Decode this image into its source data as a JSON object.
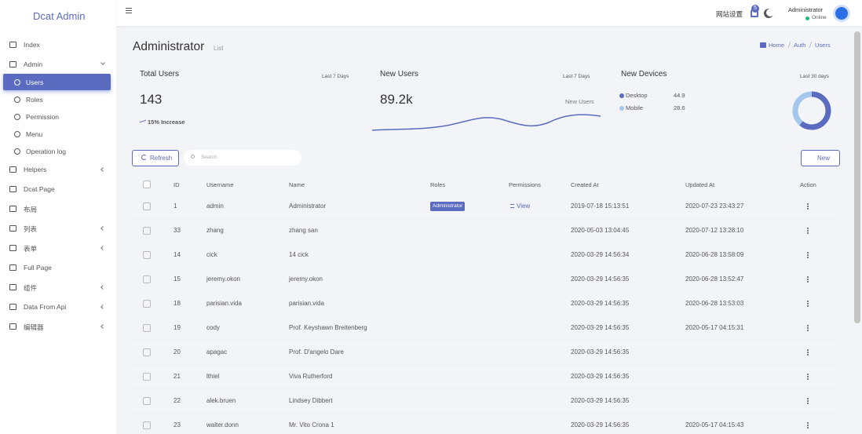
{
  "sidebar": {
    "brand": "Dcat Admin",
    "menu": [
      {
        "label": "Index"
      },
      {
        "label": "Admin",
        "open": true,
        "children": [
          {
            "label": "Users",
            "active": true
          },
          {
            "label": "Roles"
          },
          {
            "label": "Permission"
          },
          {
            "label": "Menu"
          },
          {
            "label": "Operation log"
          }
        ]
      },
      {
        "label": "Helpers",
        "collapsed": true
      },
      {
        "label": "Dcat Page"
      },
      {
        "label": "布局"
      },
      {
        "label": "列表",
        "collapsed": true
      },
      {
        "label": "表单",
        "collapsed": true
      },
      {
        "label": "Full Page"
      },
      {
        "label": "组件",
        "collapsed": true
      },
      {
        "label": "Data From Api",
        "collapsed": true
      },
      {
        "label": "编辑器",
        "collapsed": true
      }
    ]
  },
  "header": {
    "settings": "网站设置",
    "notifications": 5,
    "user": "Administrator",
    "status": "Online"
  },
  "page": {
    "title": "Administrator",
    "subtitle": "List",
    "breadcrumb": [
      "Home",
      "Auth",
      "Users"
    ]
  },
  "cards": [
    {
      "title": "Total Users",
      "filter": "Last 7 Days",
      "value": 143,
      "trend": "15% Increase"
    },
    {
      "title": "New Users",
      "filter": "Last 7 Days",
      "value": "89.2k",
      "note": "New Users"
    },
    {
      "title": "New Devices",
      "filter": "Last 30 days",
      "devices": [
        {
          "name": "Desktop",
          "value": 44.9,
          "color": "#5b6bbf"
        },
        {
          "name": "Mobile",
          "value": 28.6,
          "color": "#a3c8ec"
        }
      ]
    }
  ],
  "toolbar": {
    "refresh": "Refresh",
    "search": "Search",
    "new": "New"
  },
  "table": {
    "columns": [
      "ID",
      "Username",
      "Name",
      "Roles",
      "Permissions",
      "Created At",
      "Updated At",
      "Action"
    ],
    "rows": [
      [
        1,
        "admin",
        "Administrator",
        "Administrator",
        "View",
        "2019-07-18 15:13:51",
        "2020-07-23 23:43:27"
      ],
      [
        33,
        "zhang",
        "zhang san",
        null,
        null,
        "2020-05-03 13:04:45",
        "2020-07-12 13:28:10"
      ],
      [
        14,
        "cick",
        "14 cick",
        null,
        null,
        "2020-03-29 14:56:34",
        "2020-06-28 13:58:09"
      ],
      [
        15,
        "jeremy.okon",
        "jeremy.okon",
        null,
        null,
        "2020-03-29 14:56:35",
        "2020-06-28 13:52:47"
      ],
      [
        18,
        "parisian.vida",
        "parisian.vida",
        null,
        null,
        "2020-03-29 14:56:35",
        "2020-06-28 13:53:03"
      ],
      [
        19,
        "cody",
        "Prof. Keyshawn Breitenberg",
        null,
        null,
        "2020-03-29 14:56:35",
        "2020-05-17 04:15:31"
      ],
      [
        20,
        "apagac",
        "Prof. D'angelo Dare",
        null,
        null,
        "2020-03-29 14:56:35",
        null
      ],
      [
        21,
        "lthiel",
        "Viva Rutherford",
        null,
        null,
        "2020-03-29 14:56:35",
        null
      ],
      [
        22,
        "alek.bruen",
        "Lindsey Dibbert",
        null,
        null,
        "2020-03-29 14:56:35",
        null
      ],
      [
        23,
        "walter.donn",
        "Mr. Vito Crona 1",
        null,
        null,
        "2020-03-29 14:56:35",
        "2020-05-17 04:15:43"
      ]
    ]
  }
}
